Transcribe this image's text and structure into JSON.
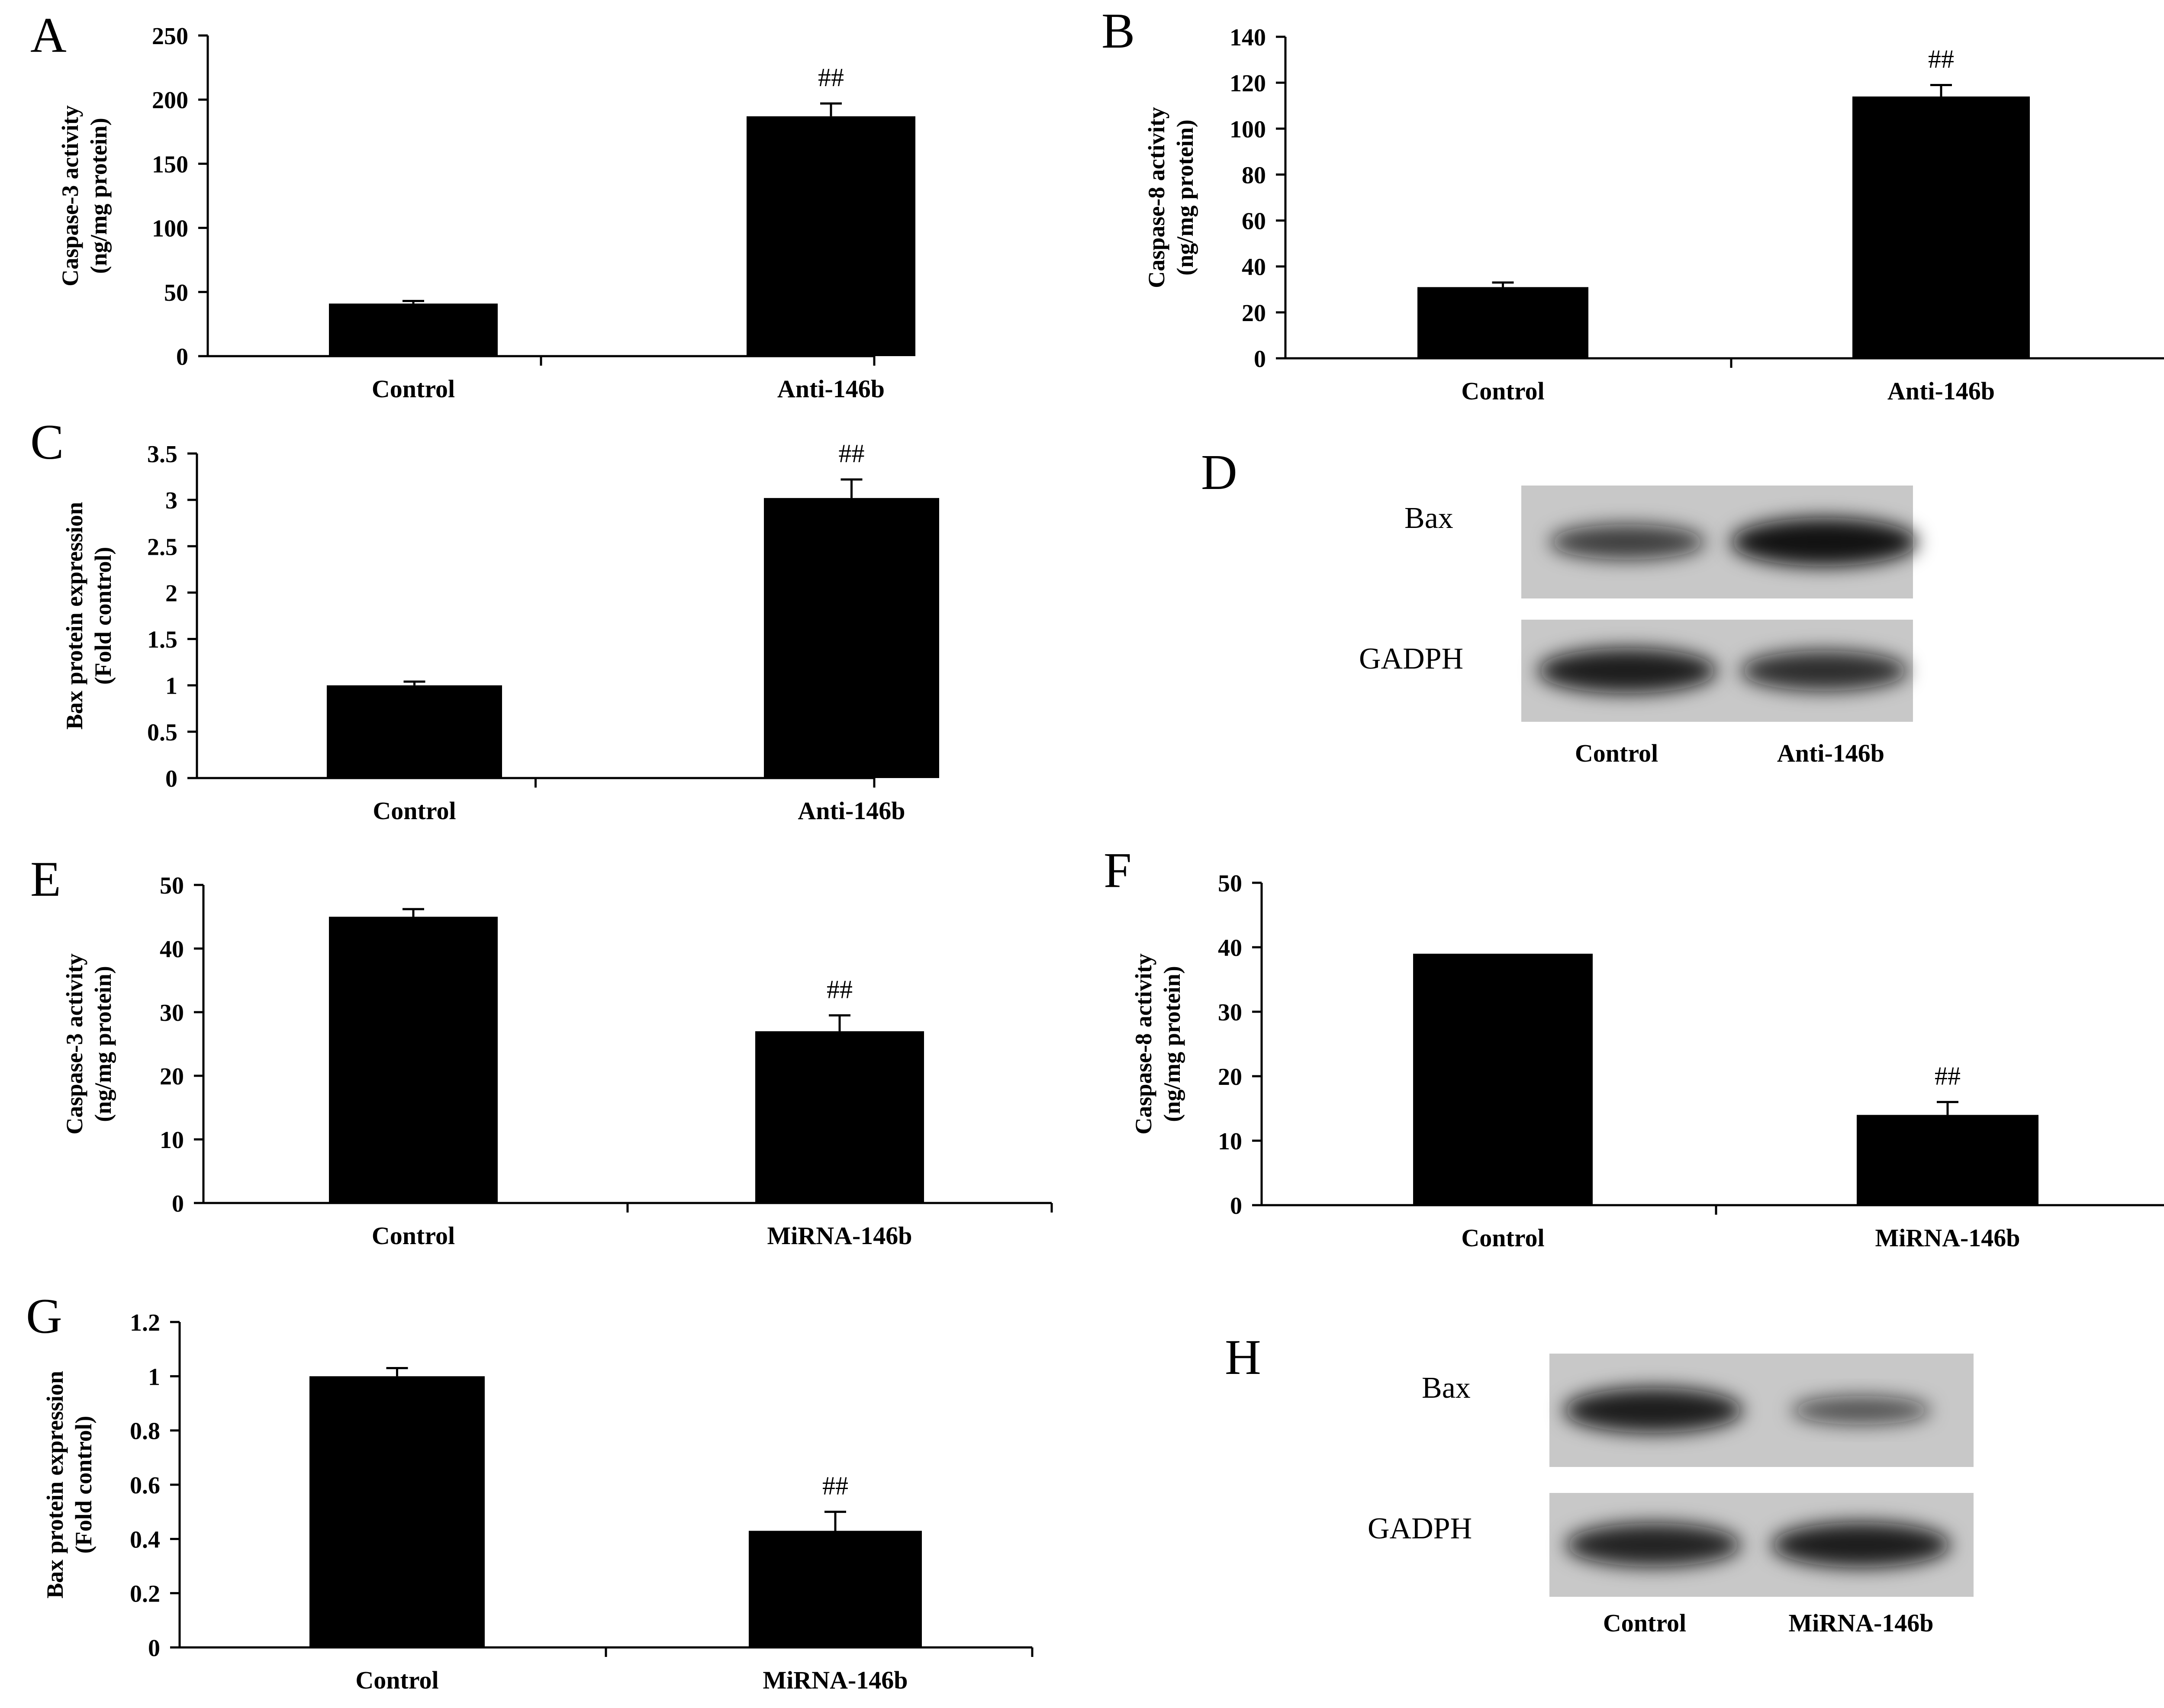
{
  "chart_data": [
    {
      "panel": "A",
      "type": "bar",
      "categories": [
        "Control",
        "Anti-146b"
      ],
      "values": [
        41,
        187
      ],
      "errors": [
        2,
        10
      ],
      "ylabel": [
        "Caspase-3 activity",
        "(ng/mg protein)"
      ],
      "ylim": [
        0,
        250
      ],
      "yticks": [
        "0",
        "50",
        "100",
        "150",
        "200",
        "250"
      ],
      "annotations": [
        "",
        "##"
      ]
    },
    {
      "panel": "B",
      "type": "bar",
      "categories": [
        "Control",
        "Anti-146b"
      ],
      "values": [
        31,
        114
      ],
      "errors": [
        2,
        5
      ],
      "ylabel": [
        "Caspase-8 activity",
        "(ng/mg protein)"
      ],
      "ylim": [
        0,
        140
      ],
      "yticks": [
        "0",
        "20",
        "40",
        "60",
        "80",
        "100",
        "120",
        "140"
      ],
      "annotations": [
        "",
        "##"
      ]
    },
    {
      "panel": "C",
      "type": "bar",
      "categories": [
        "Control",
        "Anti-146b"
      ],
      "values": [
        1.0,
        3.02
      ],
      "errors": [
        0.04,
        0.2
      ],
      "ylabel": [
        "Bax protein expression",
        "(Fold control)"
      ],
      "ylim": [
        0,
        3.5
      ],
      "yticks": [
        "0",
        "0.5",
        "1",
        "1.5",
        "2",
        "2.5",
        "3",
        "3.5"
      ],
      "annotations": [
        "",
        "##"
      ]
    },
    {
      "panel": "E",
      "type": "bar",
      "categories": [
        "Control",
        "MiRNA-146b"
      ],
      "values": [
        45,
        27
      ],
      "errors": [
        1.2,
        2.5
      ],
      "ylabel": [
        "Caspase-3 activity",
        "(ng/mg protein)"
      ],
      "ylim": [
        0,
        50
      ],
      "yticks": [
        "0",
        "10",
        "20",
        "30",
        "40",
        "50"
      ],
      "annotations": [
        "",
        "##"
      ]
    },
    {
      "panel": "F",
      "type": "bar",
      "categories": [
        "Control",
        "MiRNA-146b"
      ],
      "values": [
        39,
        14
      ],
      "errors": [
        0,
        2
      ],
      "ylabel": [
        "Caspase-8 activity",
        "(ng/mg protein)"
      ],
      "ylim": [
        0,
        50
      ],
      "yticks": [
        "0",
        "10",
        "20",
        "30",
        "40",
        "50"
      ],
      "annotations": [
        "",
        "##"
      ]
    },
    {
      "panel": "G",
      "type": "bar",
      "categories": [
        "Control",
        "MiRNA-146b"
      ],
      "values": [
        1.0,
        0.43
      ],
      "errors": [
        0.03,
        0.07
      ],
      "ylabel": [
        "Bax protein expression",
        "(Fold control)"
      ],
      "ylim": [
        0,
        1.2
      ],
      "yticks": [
        "0",
        "0.2",
        "0.4",
        "0.6",
        "0.8",
        "1",
        "1.2"
      ],
      "annotations": [
        "",
        "##"
      ]
    }
  ],
  "blots": [
    {
      "panel": "D",
      "rows": [
        {
          "label": "Bax",
          "intensities": [
            0.55,
            0.95
          ]
        },
        {
          "label": "GADPH",
          "intensities": [
            0.85,
            0.7
          ]
        }
      ],
      "lanes": [
        "Control",
        "Anti-146b"
      ]
    },
    {
      "panel": "H",
      "rows": [
        {
          "label": "Bax",
          "intensities": [
            0.85,
            0.35
          ]
        },
        {
          "label": "GADPH",
          "intensities": [
            0.8,
            0.85
          ]
        }
      ],
      "lanes": [
        "Control",
        "MiRNA-146b"
      ]
    }
  ],
  "colors": {
    "bar": "#000000",
    "blot_bg": "#c8c8c8",
    "band": "#111111"
  }
}
